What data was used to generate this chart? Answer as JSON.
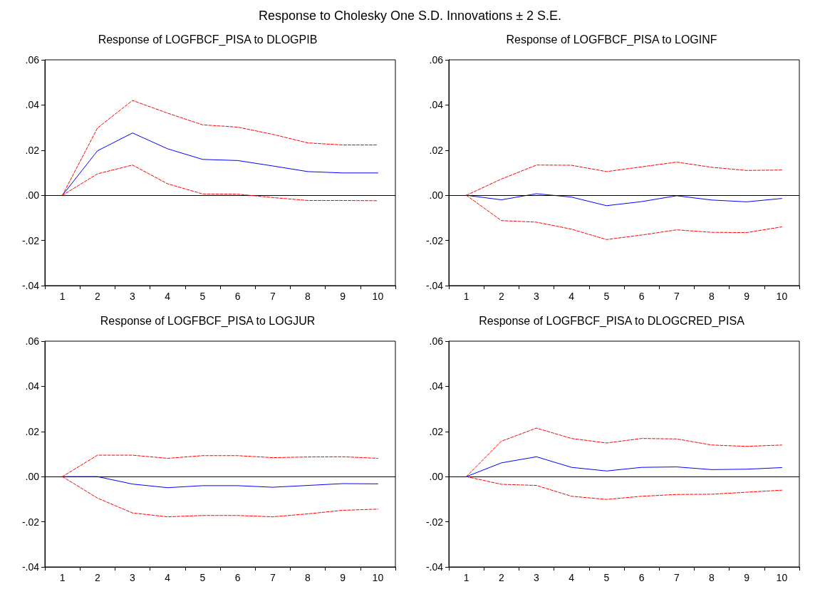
{
  "chart_data": [
    {
      "type": "line",
      "title": "Response of LOGFBCF_PISA to DLOGPIB",
      "annotations": [
        "Response to Cholesky One S.D. Innovations ± 2 S.E."
      ],
      "categories": [
        "1",
        "2",
        "3",
        "4",
        "5",
        "6",
        "7",
        "8",
        "9",
        "10"
      ],
      "ylim": [
        -0.04,
        0.06
      ],
      "yticks": [
        {
          "value": -0.04,
          "label": "-.04"
        },
        {
          "value": -0.02,
          "label": "-.02"
        },
        {
          "value": 0,
          "label": ".00"
        },
        {
          "value": 0.02,
          "label": ".02"
        },
        {
          "value": 0.04,
          "label": ".04"
        },
        {
          "value": 0.06,
          "label": ".06"
        }
      ],
      "grid": false,
      "marker": "none",
      "ref_lines": [
        {
          "axis": "y",
          "value": 0,
          "color": "#000000",
          "line_style": "solid"
        }
      ],
      "series": [
        {
          "color": "#0000ff",
          "line_style": "solid",
          "values": [
            0,
            0.0197,
            0.0276,
            0.0206,
            0.0159,
            0.0154,
            0.013,
            0.0105,
            0.0099,
            0.0099
          ]
        },
        {
          "color": "#ff0000",
          "line_style": "dashed",
          "values": [
            0,
            0.0298,
            0.042,
            0.0364,
            0.0312,
            0.0302,
            0.027,
            0.0232,
            0.0223,
            0.0223
          ]
        },
        {
          "color": "#ff0000",
          "line_style": "dashed",
          "values": [
            0,
            0.0095,
            0.0134,
            0.0051,
            0.0006,
            0.0005,
            -0.001,
            -0.0023,
            -0.0023,
            -0.0024
          ]
        }
      ]
    },
    {
      "type": "line",
      "title": "Response of LOGFBCF_PISA to LOGINF",
      "categories": [
        "1",
        "2",
        "3",
        "4",
        "5",
        "6",
        "7",
        "8",
        "9",
        "10"
      ],
      "ylim": [
        -0.04,
        0.06
      ],
      "yticks": [
        {
          "value": -0.04,
          "label": "-.04"
        },
        {
          "value": -0.02,
          "label": "-.02"
        },
        {
          "value": 0,
          "label": ".00"
        },
        {
          "value": 0.02,
          "label": ".02"
        },
        {
          "value": 0.04,
          "label": ".04"
        },
        {
          "value": 0.06,
          "label": ".06"
        }
      ],
      "grid": false,
      "marker": "none",
      "ref_lines": [
        {
          "axis": "y",
          "value": 0,
          "color": "#000000",
          "line_style": "solid"
        }
      ],
      "series": [
        {
          "color": "#0000ff",
          "line_style": "solid",
          "values": [
            0,
            -0.002,
            0.0007,
            -0.0008,
            -0.0046,
            -0.0028,
            -0.0002,
            -0.0021,
            -0.0029,
            -0.0014
          ]
        },
        {
          "color": "#ff0000",
          "line_style": "dashed",
          "values": [
            0,
            0.0072,
            0.0134,
            0.0133,
            0.0105,
            0.0126,
            0.0147,
            0.0124,
            0.011,
            0.0112
          ]
        },
        {
          "color": "#ff0000",
          "line_style": "dashed",
          "values": [
            0,
            -0.0112,
            -0.0119,
            -0.015,
            -0.0196,
            -0.0176,
            -0.0153,
            -0.0164,
            -0.0165,
            -0.014
          ]
        }
      ]
    },
    {
      "type": "line",
      "title": "Response of LOGFBCF_PISA to LOGJUR",
      "categories": [
        "1",
        "2",
        "3",
        "4",
        "5",
        "6",
        "7",
        "8",
        "9",
        "10"
      ],
      "ylim": [
        -0.04,
        0.06
      ],
      "yticks": [
        {
          "value": -0.04,
          "label": "-.04"
        },
        {
          "value": -0.02,
          "label": "-.02"
        },
        {
          "value": 0,
          "label": ".00"
        },
        {
          "value": 0.02,
          "label": ".02"
        },
        {
          "value": 0.04,
          "label": ".04"
        },
        {
          "value": 0.06,
          "label": ".06"
        }
      ],
      "grid": false,
      "marker": "none",
      "ref_lines": [
        {
          "axis": "y",
          "value": 0,
          "color": "#000000",
          "line_style": "solid"
        }
      ],
      "series": [
        {
          "color": "#0000ff",
          "line_style": "solid",
          "values": [
            0,
            0,
            -0.0033,
            -0.0049,
            -0.004,
            -0.004,
            -0.0047,
            -0.0039,
            -0.0031,
            -0.0032
          ]
        },
        {
          "color": "#ff0000",
          "line_style": "dashed",
          "values": [
            0,
            0.0095,
            0.0095,
            0.0081,
            0.0093,
            0.0093,
            0.0084,
            0.0087,
            0.0088,
            0.0081
          ]
        },
        {
          "color": "#ff0000",
          "line_style": "dashed",
          "values": [
            0,
            -0.0095,
            -0.0161,
            -0.0178,
            -0.0172,
            -0.0172,
            -0.0178,
            -0.0165,
            -0.0149,
            -0.0144
          ]
        }
      ]
    },
    {
      "type": "line",
      "title": "Response of LOGFBCF_PISA to DLOGCRED_PISA",
      "categories": [
        "1",
        "2",
        "3",
        "4",
        "5",
        "6",
        "7",
        "8",
        "9",
        "10"
      ],
      "ylim": [
        -0.04,
        0.06
      ],
      "yticks": [
        {
          "value": -0.04,
          "label": "-.04"
        },
        {
          "value": -0.02,
          "label": "-.02"
        },
        {
          "value": 0,
          "label": ".00"
        },
        {
          "value": 0.02,
          "label": ".02"
        },
        {
          "value": 0.04,
          "label": ".04"
        },
        {
          "value": 0.06,
          "label": ".06"
        }
      ],
      "grid": false,
      "marker": "none",
      "ref_lines": [
        {
          "axis": "y",
          "value": 0,
          "color": "#000000",
          "line_style": "solid"
        }
      ],
      "series": [
        {
          "color": "#0000ff",
          "line_style": "solid",
          "values": [
            0,
            0.0061,
            0.0088,
            0.0041,
            0.0025,
            0.0041,
            0.0043,
            0.0031,
            0.0033,
            0.004
          ]
        },
        {
          "color": "#ff0000",
          "line_style": "dashed",
          "values": [
            0,
            0.0157,
            0.0215,
            0.0169,
            0.0149,
            0.0169,
            0.0167,
            0.014,
            0.0134,
            0.014
          ]
        },
        {
          "color": "#ff0000",
          "line_style": "dashed",
          "values": [
            0,
            -0.0034,
            -0.0039,
            -0.0087,
            -0.0101,
            -0.0087,
            -0.0079,
            -0.0078,
            -0.0069,
            -0.006
          ]
        }
      ]
    }
  ]
}
